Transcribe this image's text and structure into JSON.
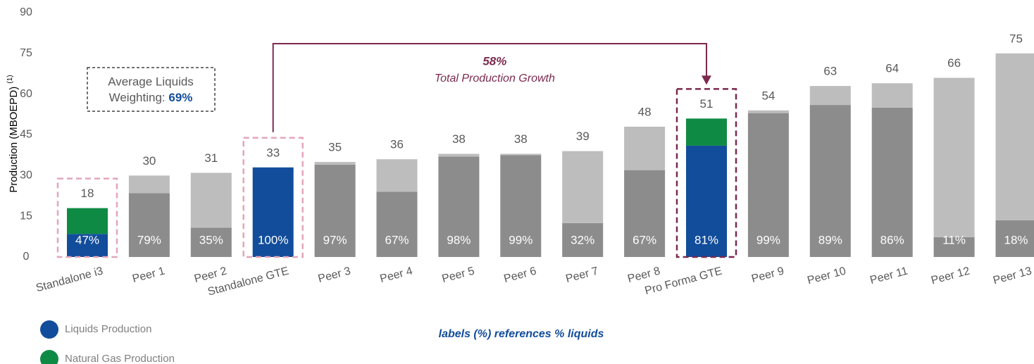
{
  "chart_data": {
    "type": "stacked_bar",
    "y_axis_label": "Production (MBOEPD)",
    "y_axis_label_note": "(1)",
    "categories": [
      "Standalone i3",
      "Peer 1",
      "Peer 2",
      "Standalone GTE",
      "Peer 3",
      "Peer 4",
      "Peer 5",
      "Peer 6",
      "Peer 7",
      "Peer 8",
      "Pro Forma GTE",
      "Peer 9",
      "Peer 10",
      "Peer 11",
      "Peer 12",
      "Peer 13"
    ],
    "series": [
      {
        "name": "Liquids Production",
        "color": "#124d9b",
        "values": [
          8.5,
          23.5,
          10.8,
          33,
          34,
          24,
          37,
          37.5,
          12.5,
          32,
          41,
          53,
          56,
          55,
          7.3,
          13.5
        ]
      },
      {
        "name": "Natural Gas Production",
        "color": "#0f8a45",
        "values": [
          9.5,
          6.5,
          20.2,
          0,
          1,
          12,
          1,
          0.5,
          26.5,
          16,
          10,
          1,
          7,
          9,
          58.7,
          61.5
        ]
      }
    ],
    "peer_colors": [
      "#8c8c8c",
      "#bdbdbd"
    ],
    "totals": [
      18,
      30,
      31,
      33,
      35,
      36,
      38,
      38,
      39,
      48,
      51,
      54,
      63,
      64,
      66,
      75
    ],
    "liquids_pct": [
      "47%",
      "79%",
      "35%",
      "100%",
      "97%",
      "67%",
      "98%",
      "99%",
      "32%",
      "67%",
      "81%",
      "99%",
      "89%",
      "86%",
      "11%",
      "18%"
    ],
    "highlight_boxes": [
      {
        "index": 0,
        "color": "#e3a6b8"
      },
      {
        "index": 3,
        "color": "#e3a6b8"
      },
      {
        "index": 10,
        "color": "#7b2a4f"
      }
    ],
    "growth_arrow": {
      "from": 3,
      "to": 10,
      "color": "#7b2a4f",
      "value": "58%",
      "label": "Total Production Growth"
    },
    "average_box": {
      "line1": "Average Liquids",
      "line2": "Weighting:",
      "value": "69%"
    },
    "note": "labels (%) references % liquids",
    "ylim": [
      0,
      90
    ],
    "yticks": [
      0,
      15,
      30,
      45,
      60,
      75,
      90
    ],
    "grid": false
  }
}
